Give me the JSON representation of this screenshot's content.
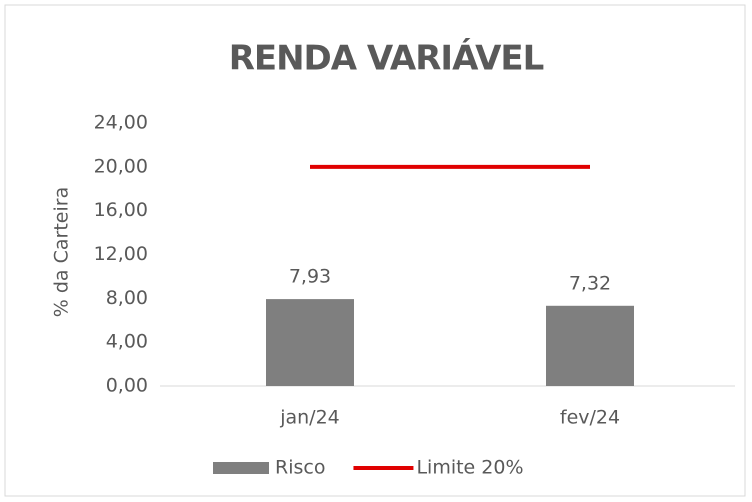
{
  "chart_data": {
    "type": "bar",
    "title": "RENDA VARIÁVEL",
    "y_label": "% da Carteira",
    "categories": [
      "jan/24",
      "fev/24"
    ],
    "series": [
      {
        "name": "Risco",
        "type": "bar",
        "color": "#7f7f7f",
        "values": [
          7.93,
          7.32
        ],
        "value_labels": [
          "7,93",
          "7,32"
        ]
      },
      {
        "name": "Limite 20%",
        "type": "line",
        "color": "#e00000",
        "values": [
          20,
          20
        ]
      }
    ],
    "ylim": [
      0,
      24
    ],
    "yticks": [
      {
        "value": 0,
        "label": "0,00"
      },
      {
        "value": 4,
        "label": "4,00"
      },
      {
        "value": 8,
        "label": "8,00"
      },
      {
        "value": 12,
        "label": "12,00"
      },
      {
        "value": 16,
        "label": "16,00"
      },
      {
        "value": 20,
        "label": "20,00"
      },
      {
        "value": 24,
        "label": "24,00"
      }
    ],
    "grid": false,
    "legend": "bottom"
  }
}
